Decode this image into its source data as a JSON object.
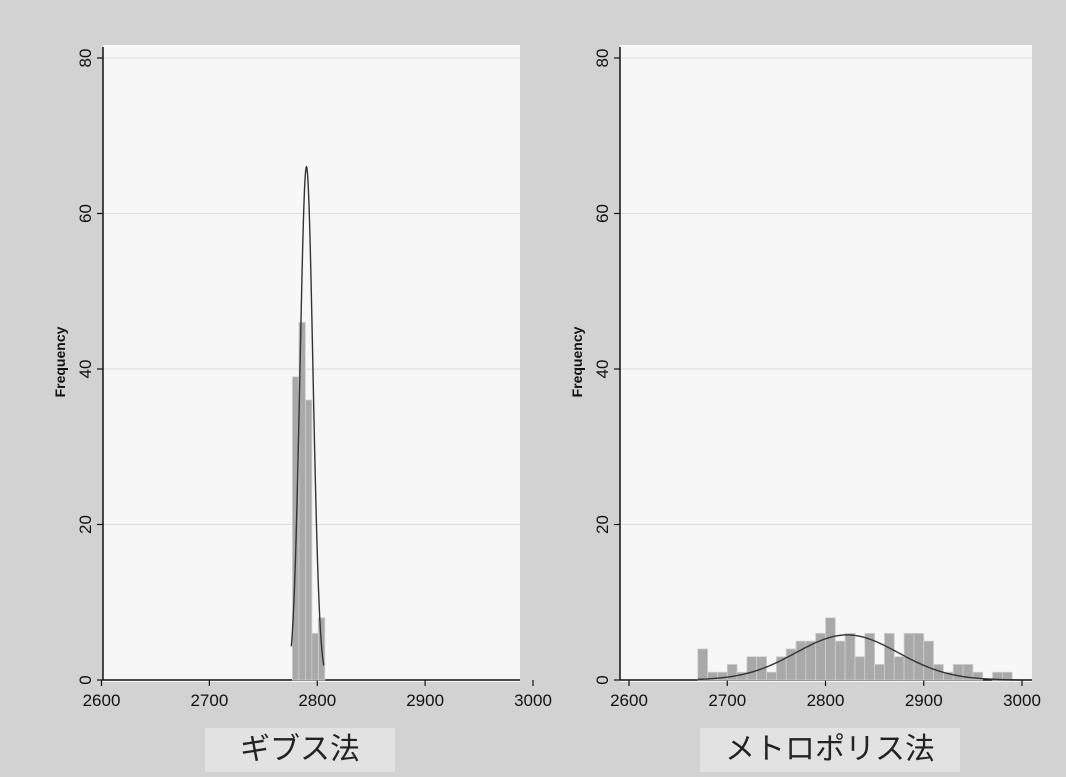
{
  "chart_data": [
    {
      "type": "bar",
      "title": "",
      "xlabel": "",
      "ylabel": "Frequency",
      "xlim": [
        2590,
        3010
      ],
      "ylim": [
        0,
        80
      ],
      "xticks": [
        2600,
        2700,
        2800,
        2900,
        3000
      ],
      "yticks": [
        0,
        20,
        40,
        60,
        80
      ],
      "bin_width": 6,
      "grid": true,
      "caption": "ギブス法",
      "bins": [
        {
          "x": 2780,
          "value": 39
        },
        {
          "x": 2786,
          "value": 46
        },
        {
          "x": 2792,
          "value": 36
        },
        {
          "x": 2798,
          "value": 6
        },
        {
          "x": 2804,
          "value": 8
        }
      ],
      "curve": {
        "type": "normal",
        "mean": 2790,
        "peak": 66
      }
    },
    {
      "type": "bar",
      "title": "",
      "xlabel": "",
      "ylabel": "Frequency",
      "xlim": [
        2590,
        3010
      ],
      "ylim": [
        0,
        80
      ],
      "xticks": [
        2600,
        2700,
        2800,
        2900,
        3000
      ],
      "yticks": [
        0,
        20,
        40,
        60,
        80
      ],
      "bin_width": 10,
      "grid": true,
      "caption": "メトロポリス法",
      "bins": [
        {
          "x": 2675,
          "value": 4
        },
        {
          "x": 2685,
          "value": 1
        },
        {
          "x": 2695,
          "value": 1
        },
        {
          "x": 2705,
          "value": 2
        },
        {
          "x": 2715,
          "value": 1
        },
        {
          "x": 2725,
          "value": 3
        },
        {
          "x": 2735,
          "value": 3
        },
        {
          "x": 2745,
          "value": 1
        },
        {
          "x": 2755,
          "value": 3
        },
        {
          "x": 2765,
          "value": 4
        },
        {
          "x": 2775,
          "value": 5
        },
        {
          "x": 2785,
          "value": 5
        },
        {
          "x": 2795,
          "value": 6
        },
        {
          "x": 2805,
          "value": 8
        },
        {
          "x": 2815,
          "value": 5
        },
        {
          "x": 2825,
          "value": 6
        },
        {
          "x": 2835,
          "value": 3
        },
        {
          "x": 2845,
          "value": 6
        },
        {
          "x": 2855,
          "value": 2
        },
        {
          "x": 2865,
          "value": 6
        },
        {
          "x": 2875,
          "value": 3
        },
        {
          "x": 2885,
          "value": 6
        },
        {
          "x": 2895,
          "value": 6
        },
        {
          "x": 2905,
          "value": 5
        },
        {
          "x": 2915,
          "value": 2
        },
        {
          "x": 2925,
          "value": 1
        },
        {
          "x": 2935,
          "value": 2
        },
        {
          "x": 2945,
          "value": 2
        },
        {
          "x": 2955,
          "value": 1
        },
        {
          "x": 2975,
          "value": 1
        },
        {
          "x": 2985,
          "value": 1
        }
      ],
      "curve": {
        "type": "normal",
        "mean": 2822,
        "peak": 5.8
      }
    }
  ]
}
